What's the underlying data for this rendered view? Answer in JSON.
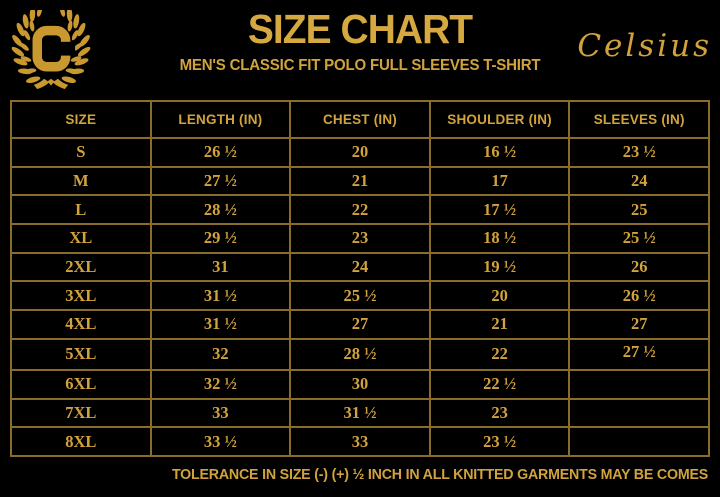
{
  "colors": {
    "background": "#000000",
    "gold_text": "#d2a33c",
    "gold_title": "#d6a940",
    "table_border": "#8a6d2a",
    "logo_gold": "#c9982f"
  },
  "brand": {
    "logo_letter": "C",
    "brand_name": "Celsius"
  },
  "header": {
    "title": "SIZE CHART",
    "subtitle": "MEN'S CLASSIC FIT POLO FULL SLEEVES T-SHIRT"
  },
  "table": {
    "columns": [
      "SIZE",
      "LENGTH (IN)",
      "CHEST (IN)",
      "SHOULDER (IN)",
      "SLEEVES (IN)"
    ],
    "rows": [
      [
        "S",
        "26 ½",
        "20",
        "16 ½",
        "23 ½"
      ],
      [
        "M",
        "27 ½",
        "21",
        "17",
        "24"
      ],
      [
        "L",
        "28 ½",
        "22",
        "17 ½",
        "25"
      ],
      [
        "XL",
        "29 ½",
        "23",
        "18 ½",
        "25 ½"
      ],
      [
        "2XL",
        "31",
        "24",
        "19 ½",
        "26"
      ],
      [
        "3XL",
        "31 ½",
        "25 ½",
        "20",
        "26 ½"
      ],
      [
        "4XL",
        "31 ½",
        "27",
        "21",
        "27"
      ],
      [
        "5XL",
        "32",
        "28 ½",
        "22",
        "27 ½"
      ],
      [
        "6XL",
        "32 ½",
        "30",
        "22 ½",
        ""
      ],
      [
        "7XL",
        "33",
        "31 ½",
        "23",
        ""
      ],
      [
        "8XL",
        "33 ½",
        "33",
        "23 ½",
        ""
      ]
    ]
  },
  "footer": {
    "note": "TOLERANCE IN SIZE (-) (+) ½ INCH IN ALL KNITTED GARMENTS MAY BE COMES"
  }
}
